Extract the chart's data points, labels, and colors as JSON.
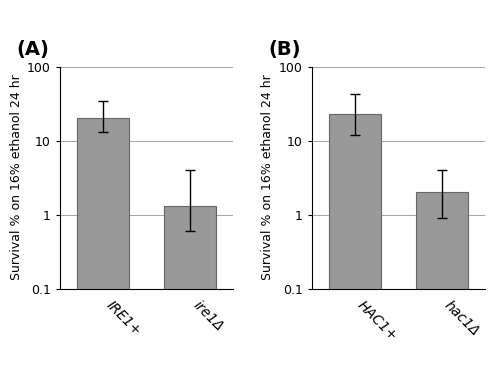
{
  "panels": [
    {
      "label": "(A)",
      "categories": [
        "IRE1+",
        "ire1Δ"
      ],
      "italic": [
        true,
        true
      ],
      "values": [
        20.0,
        1.3
      ],
      "yerr_upper": [
        14.0,
        2.7
      ],
      "yerr_lower": [
        7.0,
        0.7
      ],
      "ylabel": "Survival % on 16% ethanol 24 hr"
    },
    {
      "label": "(B)",
      "categories": [
        "HAC1+",
        "hac1Δ"
      ],
      "italic": [
        true,
        true
      ],
      "values": [
        23.0,
        2.0
      ],
      "yerr_upper": [
        20.0,
        2.0
      ],
      "yerr_lower": [
        11.0,
        1.1
      ],
      "ylabel": "Survival % on 16% ethanol 24 hr"
    }
  ],
  "ylim": [
    0.1,
    100
  ],
  "bar_color": "#999999",
  "bar_edge_color": "#666666",
  "background_color": "#ffffff",
  "yticks": [
    0.1,
    1,
    10,
    100
  ],
  "ytick_labels": [
    "0.1",
    "1",
    "10",
    "100"
  ],
  "tick_fontsize": 9,
  "ylabel_fontsize": 9,
  "panel_label_fontsize": 14,
  "xtick_fontsize": 10
}
